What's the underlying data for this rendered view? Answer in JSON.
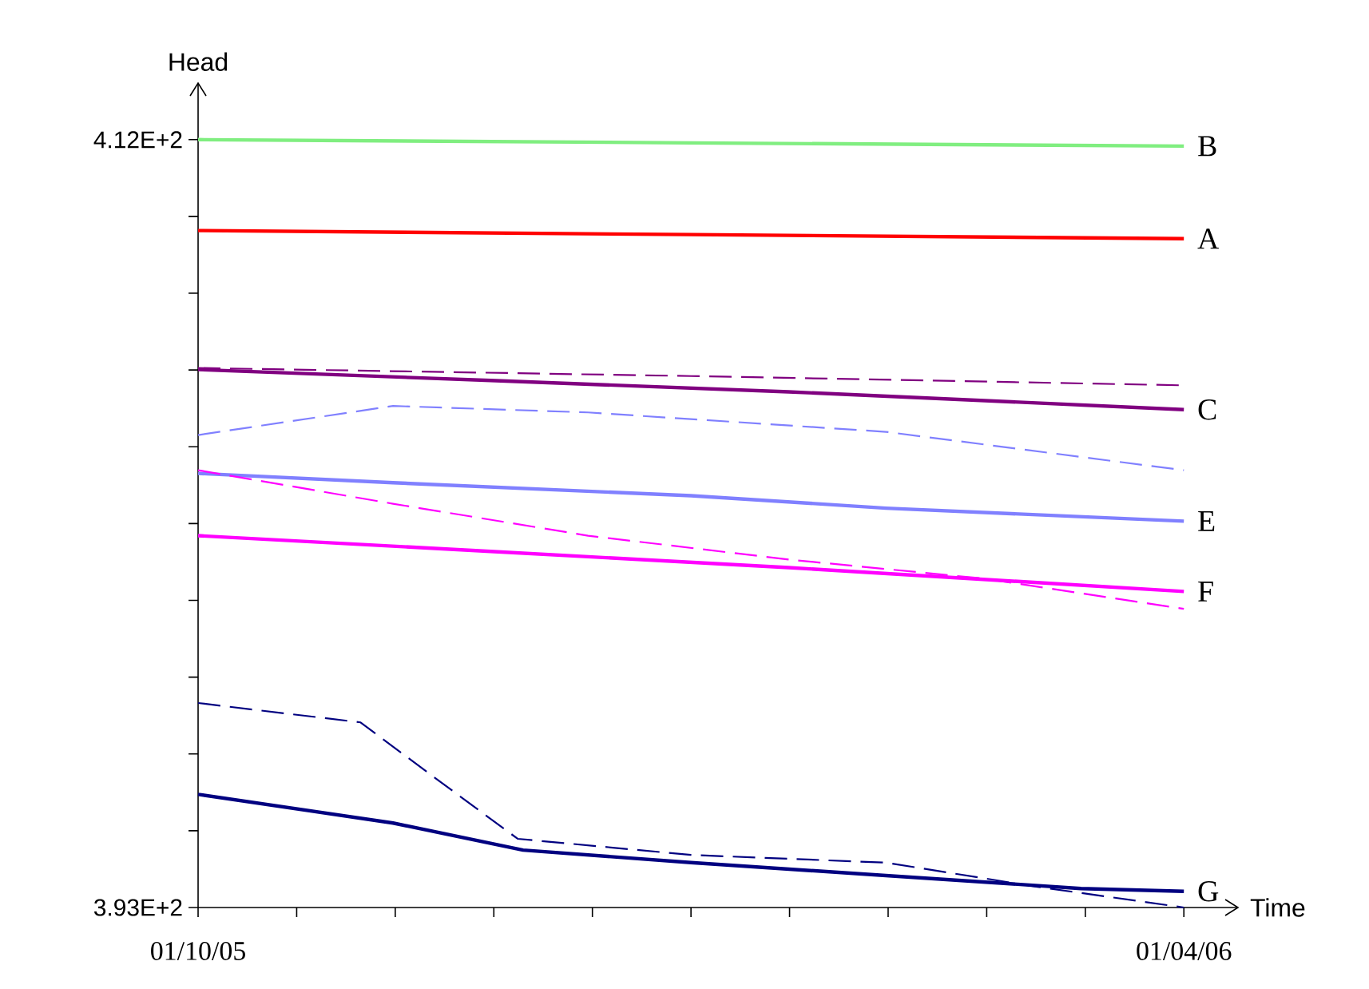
{
  "chart_data": {
    "type": "line",
    "xlabel": "Time",
    "ylabel": "Head",
    "marker": "none",
    "xlim": [
      "2005-10-01",
      "2006-04-11"
    ],
    "xticks": [
      {
        "value": "2005-10-01",
        "label": "01/10/05"
      },
      {
        "value": "2005-10-19T04:48",
        "label": null
      },
      {
        "value": "2005-11-06T09:36",
        "label": null
      },
      {
        "value": "2005-11-24T14:24",
        "label": null
      },
      {
        "value": "2005-12-12T19:12",
        "label": null
      },
      {
        "value": "2005-12-31",
        "label": null
      },
      {
        "value": "2006-01-18T04:48",
        "label": null
      },
      {
        "value": "2006-02-05T09:36",
        "label": null
      },
      {
        "value": "2006-02-23T14:24",
        "label": null
      },
      {
        "value": "2006-03-13T19:12",
        "label": null
      },
      {
        "value": "2006-04-01",
        "label": "01/04/06"
      }
    ],
    "ylim": [
      393,
      413.4
    ],
    "yticks": [
      {
        "value": 393,
        "label": "3.93E+2"
      },
      {
        "value": 394.9,
        "label": null
      },
      {
        "value": 396.8,
        "label": null
      },
      {
        "value": 398.7,
        "label": null
      },
      {
        "value": 400.6,
        "label": null
      },
      {
        "value": 402.5,
        "label": null
      },
      {
        "value": 404.4,
        "label": null
      },
      {
        "value": 406.3,
        "label": null
      },
      {
        "value": 408.2,
        "label": null
      },
      {
        "value": 410.1,
        "label": null
      },
      {
        "value": 412,
        "label": "4.12E+2"
      }
    ],
    "series": [
      {
        "name": "B",
        "color": "#80ee80",
        "line_style": "solid",
        "x": [
          "2005-10-01",
          "2005-12-31",
          "2006-04-01"
        ],
        "values": [
          412.0,
          411.92,
          411.84
        ]
      },
      {
        "name": "A",
        "color": "#ff0000",
        "line_style": "solid",
        "x": [
          "2005-10-01",
          "2005-12-31",
          "2006-04-01"
        ],
        "values": [
          409.75,
          409.65,
          409.55
        ]
      },
      {
        "color": "#800080",
        "line_style": "dashed",
        "x": [
          "2005-10-01",
          "2005-12-31",
          "2006-04-01"
        ],
        "values": [
          406.35,
          406.15,
          405.92
        ]
      },
      {
        "name": "C",
        "color": "#800080",
        "line_style": "solid",
        "x": [
          "2005-10-01",
          "2005-11-24",
          "2006-01-18",
          "2006-04-01"
        ],
        "values": [
          406.31,
          406.04,
          405.76,
          405.32
        ]
      },
      {
        "color": "#8080ff",
        "line_style": "dashed",
        "x": [
          "2005-10-01",
          "2005-11-06",
          "2005-12-12",
          "2006-02-05",
          "2006-04-01"
        ],
        "values": [
          404.69,
          405.41,
          405.25,
          404.77,
          403.82
        ]
      },
      {
        "name": "E",
        "color": "#8080ff",
        "line_style": "solid",
        "x": [
          "2005-10-01",
          "2005-11-06",
          "2005-12-31",
          "2006-02-05",
          "2006-04-01"
        ],
        "values": [
          403.74,
          403.51,
          403.19,
          402.88,
          402.56
        ]
      },
      {
        "color": "#ff00ff",
        "line_style": "dashed",
        "x": [
          "2005-10-01",
          "2005-11-06",
          "2005-12-12",
          "2006-01-18",
          "2006-02-23",
          "2006-04-01"
        ],
        "values": [
          403.82,
          402.99,
          402.2,
          401.61,
          401.14,
          400.39
        ]
      },
      {
        "name": "F",
        "color": "#ff00ff",
        "line_style": "solid",
        "x": [
          "2005-10-01",
          "2005-11-24",
          "2006-01-18",
          "2006-04-01"
        ],
        "values": [
          402.2,
          401.81,
          401.41,
          400.82
        ]
      },
      {
        "color": "#000080",
        "line_style": "dashed",
        "x": [
          "2005-10-01",
          "2005-10-31",
          "2005-11-13",
          "2005-11-29",
          "2005-12-31",
          "2006-02-05",
          "2006-03-05",
          "2006-04-01"
        ],
        "values": [
          398.06,
          397.58,
          396.28,
          394.7,
          394.3,
          394.11,
          393.51,
          393.0
        ]
      },
      {
        "name": "G",
        "color": "#000080",
        "line_style": "solid",
        "x": [
          "2005-10-01",
          "2005-11-06",
          "2005-11-30",
          "2005-12-31",
          "2006-02-05",
          "2006-03-13",
          "2006-04-01"
        ],
        "values": [
          395.8,
          395.09,
          394.42,
          394.11,
          393.79,
          393.47,
          393.4
        ]
      }
    ]
  }
}
